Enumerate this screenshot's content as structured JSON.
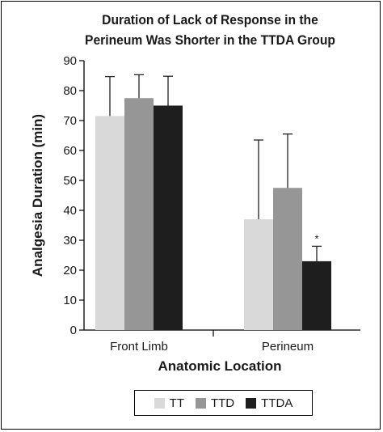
{
  "chart_data": {
    "type": "bar",
    "title_lines": [
      "Duration of Lack of Response in the",
      "Perineum Was Shorter in the TTDA Group"
    ],
    "xlabel": "Anatomic Location",
    "ylabel": "Analgesia Duration (min)",
    "ylim": [
      0,
      90
    ],
    "yticks": [
      0,
      10,
      20,
      30,
      40,
      50,
      60,
      70,
      80,
      90
    ],
    "categories": [
      "Front Limb",
      "Perineum"
    ],
    "series": [
      {
        "name": "TT",
        "color": "#d9d9d9",
        "values": [
          71.5,
          37
        ],
        "error_upper": [
          84.7,
          63.5
        ]
      },
      {
        "name": "TTD",
        "color": "#969696",
        "values": [
          77.5,
          47.5
        ],
        "error_upper": [
          85.3,
          65.5
        ]
      },
      {
        "name": "TTDA",
        "color": "#1e1e1e",
        "values": [
          75,
          23
        ],
        "error_upper": [
          84.8,
          28
        ]
      }
    ],
    "annotations": [
      {
        "category": "Perineum",
        "series": "TTDA",
        "text": "*"
      }
    ],
    "grid": false,
    "legend_position": "bottom"
  }
}
